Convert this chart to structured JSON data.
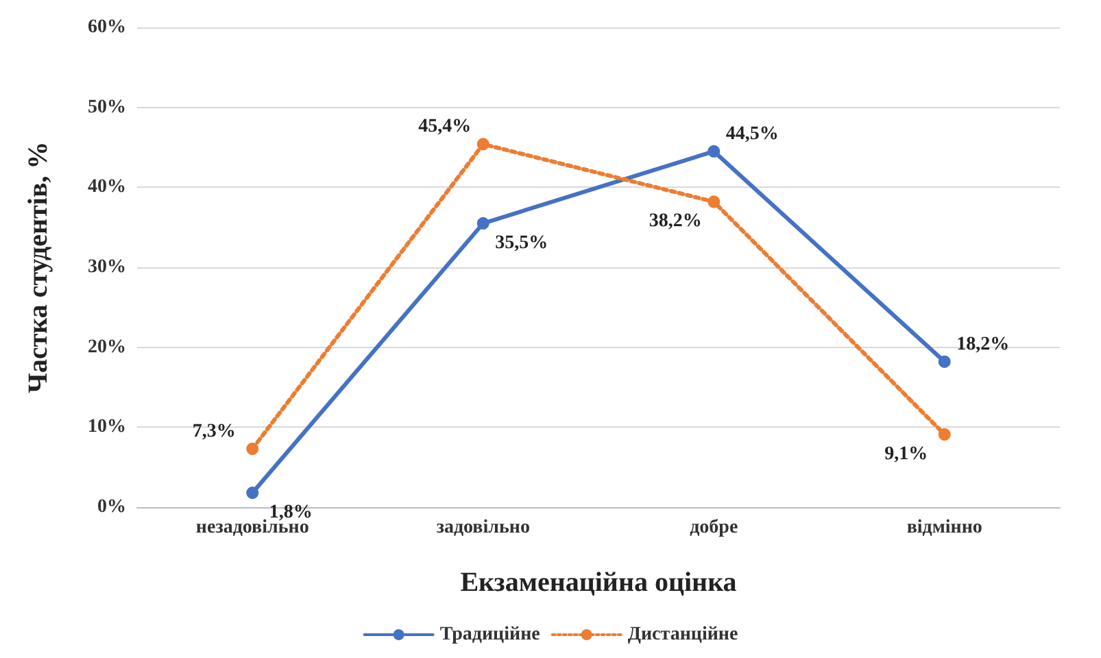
{
  "chart_data": {
    "type": "line",
    "xlabel": "Екзаменаційна оцінка",
    "ylabel": "Частка студентів, %",
    "categories": [
      "незадовільно",
      "задовільно",
      "добре",
      "відмінно"
    ],
    "series": [
      {
        "name": "Традиційне",
        "color": "#4472c4",
        "line_style": "solid",
        "values": [
          1.8,
          35.5,
          44.5,
          18.2
        ],
        "value_labels": [
          "1,8%",
          "35,5%",
          "44,5%",
          "18,2%"
        ]
      },
      {
        "name": "Дистанційне",
        "color": "#ed7d31",
        "line_style": "dotted",
        "values": [
          7.3,
          45.4,
          38.2,
          9.1
        ],
        "value_labels": [
          "7,3%",
          "45,4%",
          "38,2%",
          "9,1%"
        ]
      }
    ],
    "ylim": [
      0,
      60
    ],
    "yticks": [
      {
        "value": 0,
        "label": "0%"
      },
      {
        "value": 10,
        "label": "10%"
      },
      {
        "value": 20,
        "label": "20%"
      },
      {
        "value": 30,
        "label": "30%"
      },
      {
        "value": 40,
        "label": "40%"
      },
      {
        "value": 50,
        "label": "50%"
      },
      {
        "value": 60,
        "label": "60%"
      }
    ],
    "grid": "y",
    "legend": "bottom",
    "marker": "circle"
  }
}
